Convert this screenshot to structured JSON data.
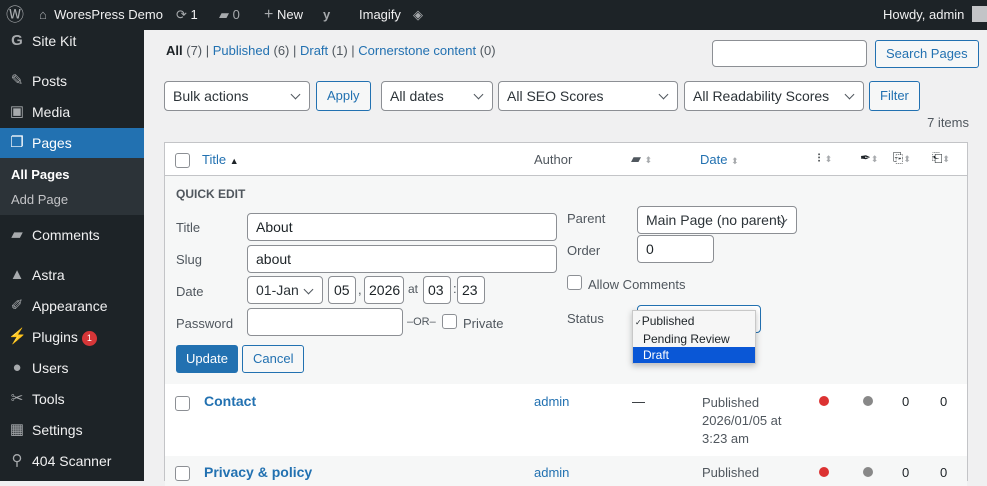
{
  "adminbar": {
    "site": "WoresPress Demo",
    "updates": "1",
    "comments": "0",
    "new": "New",
    "imagify": "Imagify",
    "howdy": "Howdy, admin"
  },
  "sidebar": {
    "items": [
      {
        "label": "Site Kit",
        "icon": "G"
      },
      {
        "label": "Posts",
        "icon": "✎"
      },
      {
        "label": "Media",
        "icon": "▣"
      },
      {
        "label": "Pages",
        "icon": "❐"
      },
      {
        "label": "Comments",
        "icon": "▰"
      },
      {
        "label": "Astra",
        "icon": "▲"
      },
      {
        "label": "Appearance",
        "icon": "✐"
      },
      {
        "label": "Plugins",
        "icon": "⚡",
        "badge": "1"
      },
      {
        "label": "Users",
        "icon": "●"
      },
      {
        "label": "Tools",
        "icon": "✂"
      },
      {
        "label": "Settings",
        "icon": "▦"
      },
      {
        "label": "404 Scanner",
        "icon": "⚲"
      }
    ],
    "submenu": [
      "All Pages",
      "Add Page"
    ]
  },
  "views": {
    "all": "All",
    "all_count": "(7)",
    "published": "Published",
    "published_count": "(6)",
    "draft": "Draft",
    "draft_count": "(1)",
    "cornerstone": "Cornerstone content",
    "cornerstone_count": "(0)"
  },
  "search": {
    "value": "",
    "button": "Search Pages"
  },
  "filters": {
    "bulk": "Bulk actions",
    "apply": "Apply",
    "dates": "All dates",
    "seo": "All SEO Scores",
    "readability": "All Readability Scores",
    "filter": "Filter",
    "count": "7 items"
  },
  "table": {
    "headers": {
      "title": "Title",
      "author": "Author",
      "date": "Date"
    },
    "rows": [
      {
        "title": "Contact",
        "author": "admin",
        "comments": "—",
        "status": "Published",
        "date": "2026/01/05 at",
        "time": "3:23 am",
        "seo_color": "#dc3232",
        "read_color": "#888888",
        "links_out": "0",
        "links_in": "0"
      },
      {
        "title": "Privacy & policy",
        "author": "admin",
        "comments": "",
        "status": "Published",
        "seo_color": "#dc3232",
        "read_color": "#888888",
        "links_out": "0",
        "links_in": "0"
      }
    ]
  },
  "quick_edit": {
    "heading": "QUICK EDIT",
    "title_label": "Title",
    "title_value": "About",
    "slug_label": "Slug",
    "slug_value": "about",
    "date_label": "Date",
    "month": "01-Jan",
    "day": "05",
    "year": "2026",
    "at": "at",
    "hour": "03",
    "minute": "23",
    "password_label": "Password",
    "password_value": "",
    "or": "–OR–",
    "private": "Private",
    "parent_label": "Parent",
    "parent_value": "Main Page (no parent)",
    "order_label": "Order",
    "order_value": "0",
    "allow_comments": "Allow Comments",
    "status_label": "Status",
    "status_options": [
      "Published",
      "Pending Review",
      "Draft"
    ],
    "status_checked": "Published",
    "status_highlighted": "Draft",
    "update": "Update",
    "cancel": "Cancel"
  }
}
